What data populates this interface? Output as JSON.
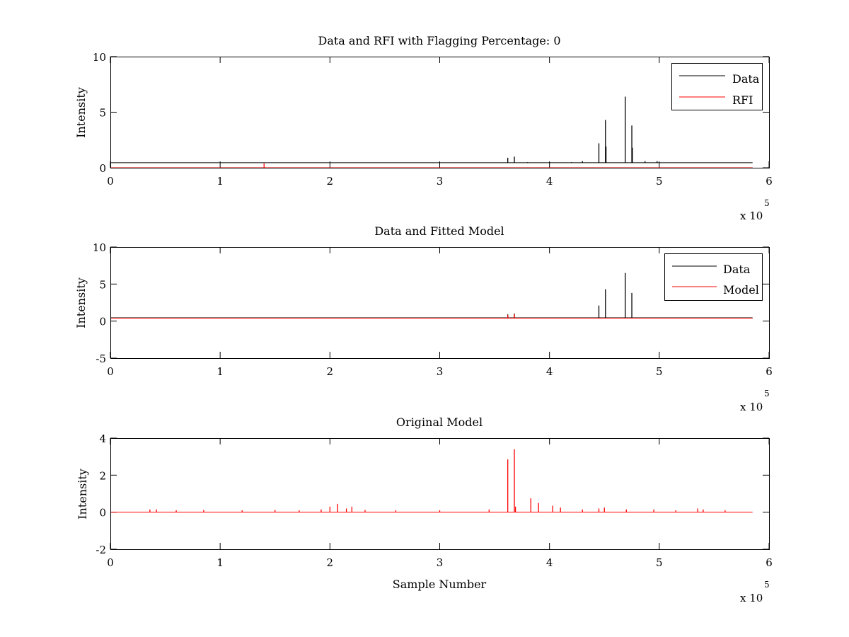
{
  "chart_data": [
    {
      "type": "line",
      "title": "Data and RFI with Flagging Percentage: 0",
      "xlabel": "",
      "ylabel": "Intensity",
      "xlim": [
        0,
        600000
      ],
      "ylim": [
        0,
        10
      ],
      "xticks": [
        "0",
        "1",
        "2",
        "3",
        "4",
        "5",
        "6"
      ],
      "yticks": [
        "0",
        "5",
        "10"
      ],
      "x_multiplier": {
        "base": "x 10",
        "exp": "5"
      },
      "legend": {
        "position": "top-right",
        "entries": [
          "Data",
          "RFI"
        ]
      },
      "colors": {
        "Data": "#000000",
        "RFI": "#ff0000"
      },
      "series": [
        {
          "name": "Data",
          "baseline": 0.45,
          "spikes": [
            {
              "x": 362000,
              "y": 0.9
            },
            {
              "x": 368000,
              "y": 1.0
            },
            {
              "x": 380000,
              "y": 0.5
            },
            {
              "x": 400000,
              "y": 0.5
            },
            {
              "x": 420000,
              "y": 0.5
            },
            {
              "x": 430000,
              "y": 0.6
            },
            {
              "x": 445000,
              "y": 2.2
            },
            {
              "x": 451000,
              "y": 4.3
            },
            {
              "x": 451500,
              "y": 1.9
            },
            {
              "x": 469000,
              "y": 6.4
            },
            {
              "x": 475000,
              "y": 3.8
            },
            {
              "x": 475500,
              "y": 1.8
            },
            {
              "x": 487000,
              "y": 0.6
            },
            {
              "x": 498000,
              "y": 0.6
            }
          ]
        },
        {
          "name": "RFI",
          "baseline": 0.0,
          "spikes": [
            {
              "x": 140000,
              "y": 0.4
            }
          ]
        }
      ]
    },
    {
      "type": "line",
      "title": "Data and Fitted Model",
      "xlabel": "",
      "ylabel": "Intensity",
      "xlim": [
        0,
        600000
      ],
      "ylim": [
        -5,
        10
      ],
      "xticks": [
        "0",
        "1",
        "2",
        "3",
        "4",
        "5",
        "6"
      ],
      "yticks": [
        "-5",
        "0",
        "5",
        "10"
      ],
      "x_multiplier": {
        "base": "x 10",
        "exp": "5"
      },
      "legend": {
        "position": "top-right",
        "entries": [
          "Data",
          "Model"
        ]
      },
      "colors": {
        "Data": "#000000",
        "Model": "#ff0000"
      },
      "series": [
        {
          "name": "Data",
          "baseline": 0.45,
          "spikes": [
            {
              "x": 362000,
              "y": 0.9
            },
            {
              "x": 368000,
              "y": 1.0
            },
            {
              "x": 445000,
              "y": 2.1
            },
            {
              "x": 451000,
              "y": 4.3
            },
            {
              "x": 469000,
              "y": 6.5
            },
            {
              "x": 475000,
              "y": 3.8
            }
          ]
        },
        {
          "name": "Model",
          "baseline": 0.4,
          "spikes": [
            {
              "x": 362000,
              "y": 0.8
            },
            {
              "x": 368000,
              "y": 0.9
            }
          ]
        }
      ]
    },
    {
      "type": "line",
      "title": "Original Model",
      "xlabel": "Sample Number",
      "ylabel": "Intensity",
      "xlim": [
        0,
        600000
      ],
      "ylim": [
        -2,
        4
      ],
      "xticks": [
        "0",
        "1",
        "2",
        "3",
        "4",
        "5",
        "6"
      ],
      "yticks": [
        "-2",
        "0",
        "2",
        "4"
      ],
      "x_multiplier": {
        "base": "x 10",
        "exp": "5"
      },
      "colors": {
        "Model": "#ff0000"
      },
      "series": [
        {
          "name": "",
          "baseline": 0.0,
          "spikes": [
            {
              "x": 36000,
              "y": 0.15
            },
            {
              "x": 42000,
              "y": 0.15
            },
            {
              "x": 60000,
              "y": 0.1
            },
            {
              "x": 85000,
              "y": 0.12
            },
            {
              "x": 120000,
              "y": 0.1
            },
            {
              "x": 150000,
              "y": 0.12
            },
            {
              "x": 172000,
              "y": 0.1
            },
            {
              "x": 192000,
              "y": 0.15
            },
            {
              "x": 200000,
              "y": 0.3
            },
            {
              "x": 207000,
              "y": 0.45
            },
            {
              "x": 215000,
              "y": 0.2
            },
            {
              "x": 220000,
              "y": 0.3
            },
            {
              "x": 232000,
              "y": 0.12
            },
            {
              "x": 260000,
              "y": 0.1
            },
            {
              "x": 300000,
              "y": 0.1
            },
            {
              "x": 345000,
              "y": 0.15
            },
            {
              "x": 362000,
              "y": 2.85
            },
            {
              "x": 368000,
              "y": 3.4
            },
            {
              "x": 369000,
              "y": 0.3
            },
            {
              "x": 383000,
              "y": 0.75
            },
            {
              "x": 390000,
              "y": 0.5
            },
            {
              "x": 403000,
              "y": 0.35
            },
            {
              "x": 410000,
              "y": 0.25
            },
            {
              "x": 430000,
              "y": 0.15
            },
            {
              "x": 445000,
              "y": 0.2
            },
            {
              "x": 450000,
              "y": 0.25
            },
            {
              "x": 470000,
              "y": 0.15
            },
            {
              "x": 495000,
              "y": 0.15
            },
            {
              "x": 515000,
              "y": 0.1
            },
            {
              "x": 535000,
              "y": 0.2
            },
            {
              "x": 540000,
              "y": 0.15
            },
            {
              "x": 560000,
              "y": 0.1
            }
          ]
        }
      ]
    }
  ]
}
